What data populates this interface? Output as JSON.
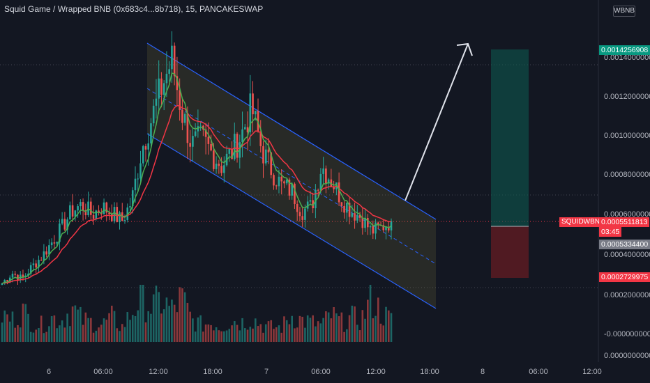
{
  "header": {
    "title": "Squid Game / Wrapped BNB (0x683c4...8b718), 15, PANCAKESWAP",
    "currency_button": "WBNB"
  },
  "colors": {
    "background": "#131722",
    "up": "#26a69a",
    "down": "#ef5350",
    "channel": "#2962ff",
    "ema_fast": "#4caf50",
    "ema_slow": "#f23645",
    "target_zone": "#0d5c52",
    "stop_zone": "#6b1c22"
  },
  "chart_data": {
    "type": "candlestick",
    "symbol": "SQUIDWBNB",
    "ylim": [
      0,
      0.00155
    ],
    "y_ticks": [
      "0.0014000000",
      "0.0012000000",
      "0.0010000000",
      "0.0008000000",
      "0.0006000000",
      "0.0004000000",
      "0.0002000000",
      "-0.0000000000",
      "0.0000000000"
    ],
    "x_ticks": [
      "6",
      "06:00",
      "12:00",
      "18:00",
      "7",
      "06:00",
      "12:00",
      "18:00",
      "8",
      "06:00",
      "12:00"
    ],
    "price_labels": {
      "target": "0.0014256908",
      "current": "0.0005511813",
      "countdown": "03:45",
      "entry": "0.0005334400",
      "stop": "0.0002729975"
    },
    "annotations": [
      "descending channel",
      "projected breakout arrow",
      "long position target/stop zones"
    ],
    "price_path": [
      0.00025,
      0.0003,
      0.00027,
      0.00033,
      0.00038,
      0.00045,
      0.00052,
      0.0006,
      0.00063,
      0.00058,
      0.00062,
      0.00059,
      0.00055,
      0.00065,
      0.0009,
      0.00105,
      0.0012,
      0.00133,
      0.00108,
      0.00092,
      0.00095,
      0.00088,
      0.00082,
      0.00088,
      0.00097,
      0.0011,
      0.0009,
      0.0008,
      0.00072,
      0.0007,
      0.0006,
      0.00062,
      0.00082,
      0.00075,
      0.00066,
      0.0006,
      0.00057,
      0.0005,
      0.00052,
      0.00055
    ],
    "volumes": [
      0.55,
      0.45,
      0.65,
      0.4,
      0.35,
      0.5,
      0.45,
      0.7,
      0.45,
      0.4,
      0.35,
      0.5,
      0.3,
      0.6,
      0.95,
      0.7,
      0.85,
      0.65,
      0.9,
      0.45,
      0.35,
      0.4,
      0.3,
      0.45,
      0.4,
      0.5,
      0.35,
      0.3,
      0.3,
      0.55,
      0.45,
      0.4,
      0.35,
      0.55,
      0.4,
      0.5,
      0.45,
      0.9,
      0.6,
      0.45
    ]
  }
}
